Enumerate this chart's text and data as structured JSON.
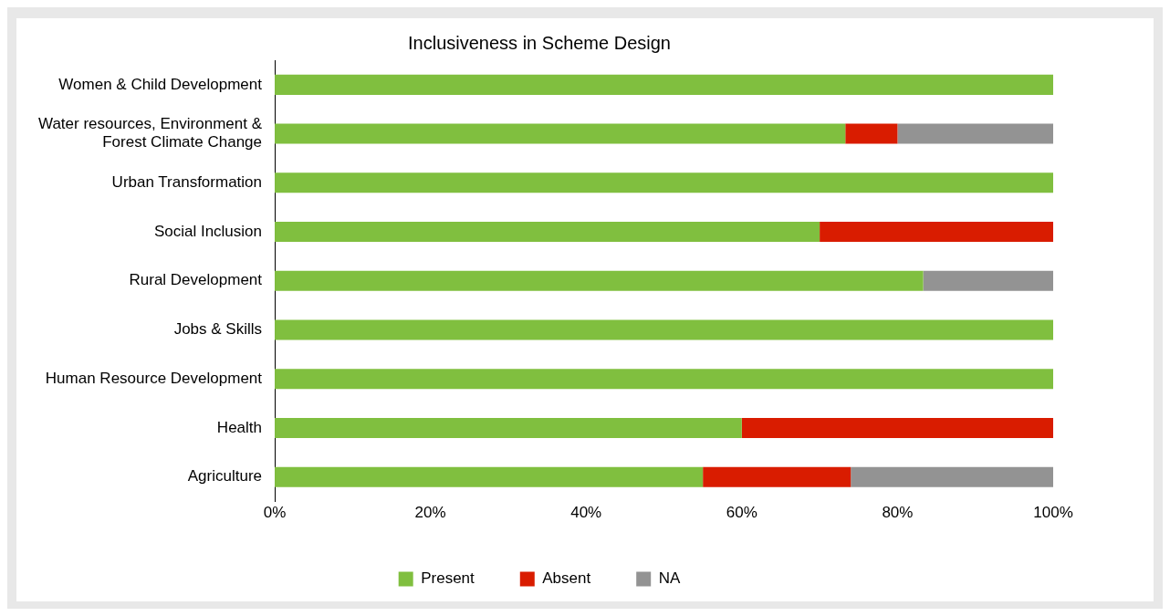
{
  "chart_data": {
    "type": "bar",
    "orientation": "horizontal",
    "stacked": true,
    "title": "Inclusiveness in Scheme Design",
    "categories": [
      "Women & Child Development",
      "Water resources, Environment & Forest Climate Change",
      "Urban Transformation",
      "Social Inclusion",
      "Rural Development",
      "Jobs & Skills",
      "Human Resource Development",
      "Health",
      "Agriculture"
    ],
    "series": [
      {
        "name": "Present",
        "color": "#80bf3f",
        "values": [
          100,
          73.3,
          100,
          70,
          83.3,
          100,
          100,
          60,
          55
        ]
      },
      {
        "name": "Absent",
        "color": "#d91c00",
        "values": [
          0,
          6.7,
          0,
          30,
          0,
          0,
          0,
          40,
          19
        ]
      },
      {
        "name": "NA",
        "color": "#939393",
        "values": [
          0,
          20,
          0,
          0,
          16.7,
          0,
          0,
          0,
          26
        ]
      }
    ],
    "xlim": [
      0,
      100
    ],
    "xticks": [
      {
        "value": 0,
        "label": "0%"
      },
      {
        "value": 20,
        "label": "20%"
      },
      {
        "value": 40,
        "label": "40%"
      },
      {
        "value": 60,
        "label": "60%"
      },
      {
        "value": 80,
        "label": "80%"
      },
      {
        "value": 100,
        "label": "100%"
      }
    ],
    "grid": false,
    "legend": "bottom"
  }
}
